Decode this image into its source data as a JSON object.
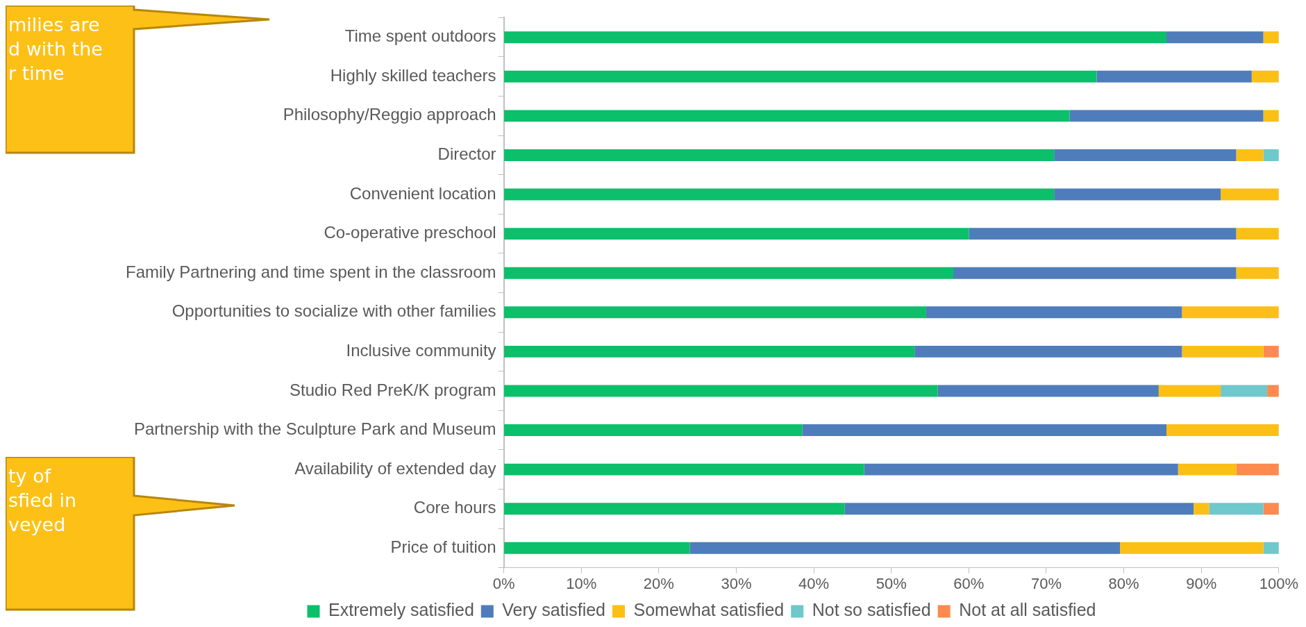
{
  "chart_data": {
    "type": "bar",
    "orientation": "horizontal",
    "stacked": true,
    "categories": [
      "Time spent outdoors",
      "Highly skilled teachers",
      "Philosophy/Reggio approach",
      "Director",
      "Convenient location",
      "Co-operative preschool",
      "Family Partnering and time spent in the classroom",
      "Opportunities to socialize with other families",
      "Inclusive community",
      "Studio Red PreK/K program",
      "Partnership with the Sculpture Park and Museum",
      "Availability of extended day",
      "Core hours",
      "Price of tuition"
    ],
    "series": [
      {
        "name": "Extremely satisfied",
        "color": "#0cbf6a",
        "values": [
          85.5,
          76.5,
          73,
          71,
          71,
          60,
          58,
          54.5,
          53,
          56,
          38.5,
          46.5,
          44,
          24
        ]
      },
      {
        "name": "Very satisfied",
        "color": "#4f7dbb",
        "values": [
          12.5,
          20,
          25,
          23.5,
          21.5,
          34.5,
          36.5,
          33,
          34.5,
          28.5,
          47,
          40.5,
          45,
          55.5
        ]
      },
      {
        "name": "Somewhat satisfied",
        "color": "#fbbf16",
        "values": [
          2,
          3.5,
          2,
          3.5,
          7.5,
          5.5,
          5.5,
          12.5,
          10.5,
          8,
          14.5,
          7.5,
          2,
          18.5
        ]
      },
      {
        "name": "Not so satisfied",
        "color": "#6ec8cc",
        "values": [
          0,
          0,
          0,
          2,
          0,
          0,
          0,
          0,
          0,
          6,
          0,
          0,
          7,
          2
        ]
      },
      {
        "name": "Not at all satisfied",
        "color": "#fd8a4e",
        "values": [
          0,
          0,
          0,
          0,
          0,
          0,
          0,
          0,
          2,
          1.5,
          0,
          5.5,
          2,
          0
        ]
      }
    ],
    "xlim": [
      0,
      100
    ],
    "xticks": [
      {
        "value": 0,
        "label": "0%"
      },
      {
        "value": 10,
        "label": "10%"
      },
      {
        "value": 20,
        "label": "20%"
      },
      {
        "value": 30,
        "label": "30%"
      },
      {
        "value": 40,
        "label": "40%"
      },
      {
        "value": 50,
        "label": "50%"
      },
      {
        "value": 60,
        "label": "60%"
      },
      {
        "value": 70,
        "label": "70%"
      },
      {
        "value": 80,
        "label": "80%"
      },
      {
        "value": 90,
        "label": "90%"
      },
      {
        "value": 100,
        "label": "100%"
      }
    ],
    "legend": "bottom",
    "annotations": [
      "milies are\nd with the\nr time",
      "ty of\nsfied in\nveyed"
    ]
  }
}
